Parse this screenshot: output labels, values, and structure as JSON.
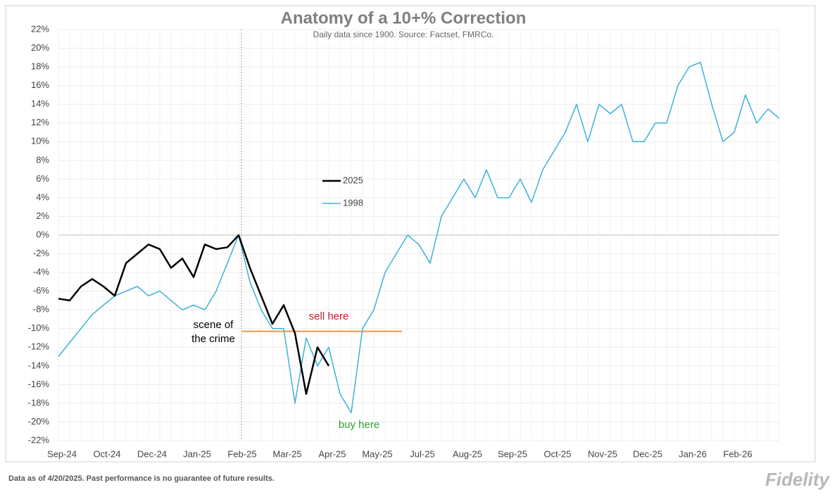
{
  "chart_data": {
    "type": "line",
    "title": "Anatomy of a 10+% Correction",
    "subtitle": "Daily data since 1900.  Source: Factset, FMRCo.",
    "categories": [
      "Sep-24",
      null,
      null,
      null,
      "Oct-24",
      null,
      null,
      null,
      "Dec-24",
      null,
      null,
      null,
      "Jan-25",
      null,
      null,
      null,
      "Feb-25",
      null,
      null,
      null,
      "Mar-25",
      null,
      null,
      null,
      "Apr-25",
      null,
      null,
      null,
      "May-25",
      null,
      null,
      null,
      "Jul-25",
      null,
      null,
      null,
      "Aug-25",
      null,
      null,
      null,
      "Sep-25",
      null,
      null,
      null,
      "Oct-25",
      null,
      null,
      null,
      "Nov-25",
      null,
      null,
      null,
      "Dec-25",
      null,
      null,
      null,
      "Jan-26",
      null,
      null,
      null,
      "Feb-26",
      null,
      null,
      null,
      null
    ],
    "series": [
      {
        "name": "2025",
        "color": "#000000",
        "values": [
          -6.8,
          -7,
          -5.5,
          -4.7,
          -5.5,
          -6.5,
          -3,
          -2,
          -1,
          -1.5,
          -3.5,
          -2.5,
          -4.5,
          -1,
          -1.5,
          -1.3,
          0,
          -3.5,
          -6.5,
          -9.5,
          -7.5,
          -10.5,
          -17,
          -12,
          -14,
          null,
          null,
          null,
          null,
          null,
          null,
          null,
          null,
          null,
          null,
          null,
          null,
          null,
          null,
          null,
          null,
          null,
          null,
          null,
          null,
          null,
          null,
          null,
          null,
          null,
          null,
          null,
          null,
          null,
          null,
          null,
          null,
          null,
          null,
          null,
          null,
          null,
          null,
          null,
          null
        ]
      },
      {
        "name": "1998",
        "color": "#3bb3d6",
        "values": [
          -13,
          -11.5,
          -10,
          -8.5,
          -7.5,
          -6.5,
          -6,
          -5.5,
          -6.5,
          -6,
          -7,
          -8,
          -7.5,
          -8,
          -6,
          -3,
          0,
          -5,
          -8,
          -10,
          -10,
          -18,
          -11,
          -14,
          -12,
          -17,
          -19,
          -10,
          -8,
          -4,
          -2,
          0,
          -1,
          -3,
          2,
          4,
          6,
          4,
          7,
          4,
          4,
          6,
          3.5,
          7,
          9,
          11,
          14,
          10,
          14,
          13,
          14,
          10,
          10,
          12,
          12,
          16,
          18,
          18.5,
          14,
          10,
          11,
          15,
          12,
          13.5,
          12.5
        ]
      }
    ],
    "ylim": [
      -22,
      22
    ],
    "yticks": [
      {
        "value": -22,
        "label": "-22%"
      },
      {
        "value": -20,
        "label": "-20%"
      },
      {
        "value": -18,
        "label": "-18%"
      },
      {
        "value": -16,
        "label": "-16%"
      },
      {
        "value": -14,
        "label": "-14%"
      },
      {
        "value": -12,
        "label": "-12%"
      },
      {
        "value": -10,
        "label": "-10%"
      },
      {
        "value": -8,
        "label": "-8%"
      },
      {
        "value": -6,
        "label": "-6%"
      },
      {
        "value": -4,
        "label": "-4%"
      },
      {
        "value": -2,
        "label": "-2%"
      },
      {
        "value": 0,
        "label": "0%"
      },
      {
        "value": 2,
        "label": "2%"
      },
      {
        "value": 4,
        "label": "4%"
      },
      {
        "value": 6,
        "label": "6%"
      },
      {
        "value": 8,
        "label": "8%"
      },
      {
        "value": 10,
        "label": "10%"
      },
      {
        "value": 12,
        "label": "12%"
      },
      {
        "value": 14,
        "label": "14%"
      },
      {
        "value": 16,
        "label": "16%"
      },
      {
        "value": 18,
        "label": "18%"
      },
      {
        "value": 20,
        "label": "20%"
      },
      {
        "value": 22,
        "label": "22%"
      }
    ],
    "grid": true,
    "hline": {
      "value": -10.3,
      "color": "#f0a868"
    },
    "annotations": {
      "sell": "sell here",
      "buy": "buy here",
      "crime_1": "scene of",
      "crime_2": "the crime"
    },
    "footnote": "Data as of 4/20/2025. Past performance is no guarantee of future results.",
    "logo": "Fidelity"
  }
}
